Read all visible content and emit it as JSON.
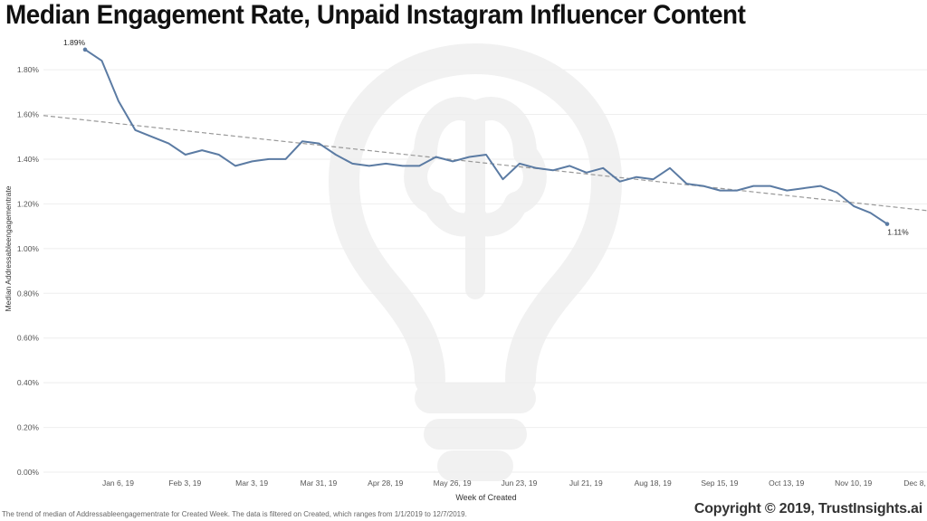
{
  "header": {
    "title": "Median Engagement Rate, Unpaid Instagram Influencer Content"
  },
  "footer": {
    "note": "The trend of median of Addressableengagementrate for Created Week. The data is filtered on Created, which ranges from 1/1/2019 to 12/7/2019.",
    "copyright": "Copyright © 2019, TrustInsights.ai"
  },
  "watermark": {
    "icon": "lightbulb-brain-icon"
  },
  "colors": {
    "line": "#5b7ba3",
    "trend": "#999999",
    "grid": "#eeeeee",
    "axis_text": "#555555"
  },
  "chart_data": {
    "type": "line",
    "title": "Median Engagement Rate, Unpaid Instagram Influencer Content",
    "xlabel": "Week of Created",
    "ylabel": "Median Addressableengagementrate",
    "x_tick_labels": [
      "Jan 6, 19",
      "Feb 3, 19",
      "Mar 3, 19",
      "Mar 31, 19",
      "Apr 28, 19",
      "May 26, 19",
      "Jun 23, 19",
      "Jul 21, 19",
      "Aug 18, 19",
      "Sep 15, 19",
      "Oct 13, 19",
      "Nov 10, 19",
      "Dec 8, 19"
    ],
    "y_tick_labels": [
      "0.00%",
      "0.20%",
      "0.40%",
      "0.60%",
      "0.80%",
      "1.00%",
      "1.20%",
      "1.40%",
      "1.60%",
      "1.80%"
    ],
    "ylim": [
      0,
      1.95
    ],
    "grid": true,
    "series": [
      {
        "x": [
          "Dec 30, 18",
          "Jan 6, 19",
          "Jan 13, 19",
          "Jan 20, 19",
          "Jan 27, 19",
          "Feb 3, 19",
          "Feb 10, 19",
          "Feb 17, 19",
          "Feb 24, 19",
          "Mar 3, 19",
          "Mar 10, 19",
          "Mar 17, 19",
          "Mar 24, 19",
          "Mar 31, 19",
          "Apr 7, 19",
          "Apr 14, 19",
          "Apr 21, 19",
          "Apr 28, 19",
          "May 5, 19",
          "May 12, 19",
          "May 19, 19",
          "May 26, 19",
          "Jun 2, 19",
          "Jun 9, 19",
          "Jun 16, 19",
          "Jun 23, 19",
          "Jun 30, 19",
          "Jul 7, 19",
          "Jul 14, 19",
          "Jul 21, 19",
          "Jul 28, 19",
          "Aug 4, 19",
          "Aug 11, 19",
          "Aug 18, 19",
          "Aug 25, 19",
          "Sep 1, 19",
          "Sep 8, 19",
          "Sep 15, 19",
          "Sep 22, 19",
          "Sep 29, 19",
          "Oct 6, 19",
          "Oct 13, 19",
          "Oct 20, 19",
          "Oct 27, 19",
          "Nov 3, 19",
          "Nov 10, 19",
          "Nov 17, 19",
          "Nov 24, 19",
          "Dec 1, 19"
        ],
        "values": [
          1.89,
          1.84,
          1.66,
          1.53,
          1.5,
          1.47,
          1.42,
          1.44,
          1.42,
          1.37,
          1.39,
          1.4,
          1.4,
          1.48,
          1.47,
          1.42,
          1.38,
          1.37,
          1.38,
          1.37,
          1.37,
          1.41,
          1.39,
          1.41,
          1.42,
          1.31,
          1.38,
          1.36,
          1.35,
          1.37,
          1.34,
          1.36,
          1.3,
          1.32,
          1.31,
          1.36,
          1.29,
          1.28,
          1.26,
          1.26,
          1.28,
          1.28,
          1.26,
          1.27,
          1.28,
          1.25,
          1.19,
          1.16,
          1.11
        ]
      }
    ],
    "trend_line": {
      "start": 1.595,
      "end": 1.17
    },
    "annotations": [
      {
        "label": "1.89%",
        "at": "Dec 30, 18"
      },
      {
        "label": "1.11%",
        "at": "Dec 1, 19"
      }
    ]
  }
}
